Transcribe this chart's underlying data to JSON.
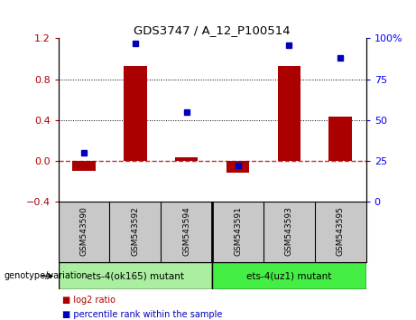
{
  "title": "GDS3747 / A_12_P100514",
  "samples": [
    "GSM543590",
    "GSM543592",
    "GSM543594",
    "GSM543591",
    "GSM543593",
    "GSM543595"
  ],
  "log2_ratio": [
    -0.1,
    0.93,
    0.03,
    -0.12,
    0.93,
    0.43
  ],
  "percentile_rank": [
    30,
    97,
    55,
    22,
    96,
    88
  ],
  "bar_color": "#aa0000",
  "dot_color": "#0000bb",
  "ylim_left": [
    -0.4,
    1.2
  ],
  "ylim_right": [
    0,
    100
  ],
  "yticks_left": [
    -0.4,
    0.0,
    0.4,
    0.8,
    1.2
  ],
  "yticks_right": [
    0,
    25,
    50,
    75,
    100
  ],
  "ytick_labels_right": [
    "0",
    "25",
    "50",
    "75",
    "100%"
  ],
  "hline_y": 0.0,
  "dotted_lines": [
    0.4,
    0.8
  ],
  "group1_label": "ets-4(ok165) mutant",
  "group2_label": "ets-4(uz1) mutant",
  "group1_color": "#aaeea0",
  "group2_color": "#44ee44",
  "genotype_label": "genotype/variation",
  "legend_bar_label": "log2 ratio",
  "legend_dot_label": "percentile rank within the sample",
  "bar_width": 0.45,
  "background_color": "#ffffff",
  "tick_label_area_color": "#c8c8c8",
  "xlim": [
    -0.5,
    5.5
  ]
}
